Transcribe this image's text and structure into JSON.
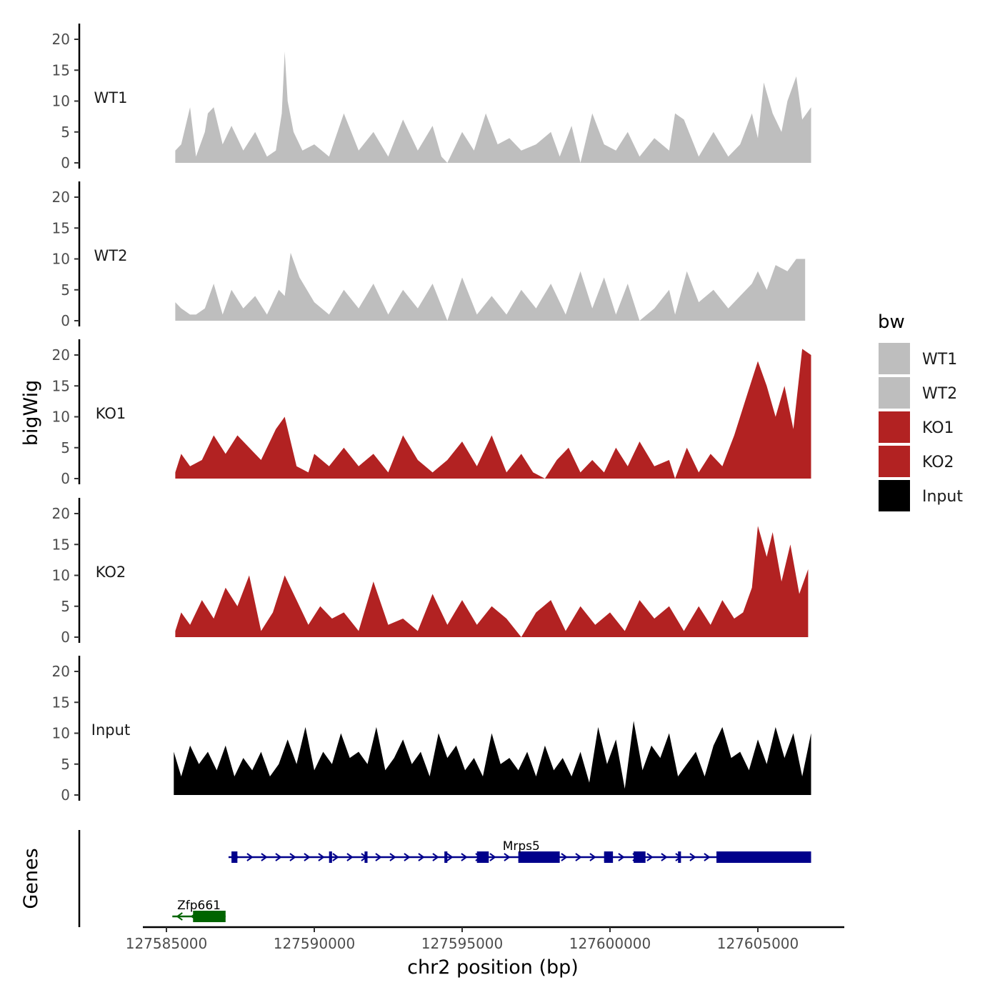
{
  "chart_data": {
    "type": "area",
    "xlabel": "chr2 position (bp)",
    "ylabel": "bigWig",
    "genes_label": "Genes",
    "xlim": [
      127584000,
      127606900
    ],
    "x_ticks": [
      127585000,
      127590000,
      127595000,
      127600000,
      127605000
    ],
    "x_tick_labels": [
      "127585000",
      "127590000",
      "127595000",
      "127600000",
      "127605000"
    ],
    "ylim": [
      0,
      22
    ],
    "y_ticks": [
      0,
      5,
      10,
      15,
      20
    ],
    "y_tick_labels": [
      "0",
      "5",
      "10",
      "15",
      "20"
    ],
    "legend": {
      "title": "bw",
      "entries": [
        {
          "label": "WT1",
          "color": "#bebebe"
        },
        {
          "label": "WT2",
          "color": "#bebebe"
        },
        {
          "label": "KO1",
          "color": "#b22222"
        },
        {
          "label": "KO2",
          "color": "#b22222"
        },
        {
          "label": "Input",
          "color": "#000000"
        }
      ]
    },
    "tracks": [
      {
        "name": "WT1",
        "color": "#bebebe",
        "x": [
          127585300,
          127585500,
          127585800,
          127586000,
          127586300,
          127586400,
          127586600,
          127586900,
          127587200,
          127587600,
          127588000,
          127588400,
          127588700,
          127588900,
          127589000,
          127589100,
          127589300,
          127589600,
          127590000,
          127590500,
          127591000,
          127591500,
          127592000,
          127592500,
          127593000,
          127593500,
          127594000,
          127594300,
          127594500,
          127595000,
          127595400,
          127595800,
          127596200,
          127596600,
          127597000,
          127597500,
          127598000,
          127598300,
          127598700,
          127599000,
          127599400,
          127599800,
          127600200,
          127600600,
          127601000,
          127601500,
          127602000,
          127602200,
          127602500,
          127603000,
          127603500,
          127604000,
          127604400,
          127604800,
          127605000,
          127605200,
          127605500,
          127605800,
          127606000,
          127606300,
          127606500,
          127606800
        ],
        "y": [
          2,
          3,
          9,
          1,
          5,
          8,
          9,
          3,
          6,
          2,
          5,
          1,
          2,
          8,
          18,
          10,
          5,
          2,
          3,
          1,
          8,
          2,
          5,
          1,
          7,
          2,
          6,
          1,
          0,
          5,
          2,
          8,
          3,
          4,
          2,
          3,
          5,
          1,
          6,
          0,
          8,
          3,
          2,
          5,
          1,
          4,
          2,
          8,
          7,
          1,
          5,
          1,
          3,
          8,
          4,
          13,
          8,
          5,
          10,
          14,
          7,
          9
        ]
      },
      {
        "name": "WT2",
        "color": "#bebebe",
        "x": [
          127585300,
          127585500,
          127585800,
          127586000,
          127586300,
          127586600,
          127586900,
          127587200,
          127587600,
          127588000,
          127588400,
          127588800,
          127589000,
          127589200,
          127589500,
          127590000,
          127590500,
          127591000,
          127591500,
          127592000,
          127592500,
          127593000,
          127593500,
          127594000,
          127594500,
          127595000,
          127595500,
          127596000,
          127596500,
          127597000,
          127597500,
          127598000,
          127598500,
          127599000,
          127599400,
          127599800,
          127600200,
          127600600,
          127601000,
          127601500,
          127602000,
          127602200,
          127602600,
          127603000,
          127603500,
          127604000,
          127604400,
          127604800,
          127605000,
          127605300,
          127605600,
          127606000,
          127606300,
          127606600
        ],
        "y": [
          3,
          2,
          1,
          1,
          2,
          6,
          1,
          5,
          2,
          4,
          1,
          5,
          4,
          11,
          7,
          3,
          1,
          5,
          2,
          6,
          1,
          5,
          2,
          6,
          0,
          7,
          1,
          4,
          1,
          5,
          2,
          6,
          1,
          8,
          2,
          7,
          1,
          6,
          0,
          2,
          5,
          1,
          8,
          3,
          5,
          2,
          4,
          6,
          8,
          5,
          9,
          8,
          10,
          10
        ]
      },
      {
        "name": "KO1",
        "color": "#b22222",
        "x": [
          127585300,
          127585500,
          127585800,
          127586200,
          127586600,
          127587000,
          127587400,
          127587800,
          127588200,
          127588700,
          127589000,
          127589400,
          127589800,
          127590000,
          127590500,
          127591000,
          127591500,
          127592000,
          127592500,
          127593000,
          127593500,
          127594000,
          127594500,
          127595000,
          127595500,
          127596000,
          127596500,
          127597000,
          127597400,
          127597800,
          127598200,
          127598600,
          127599000,
          127599400,
          127599800,
          127600200,
          127600600,
          127601000,
          127601500,
          127602000,
          127602200,
          127602600,
          127603000,
          127603400,
          127603800,
          127604200,
          127604600,
          127605000,
          127605300,
          127605600,
          127605900,
          127606200,
          127606500,
          127606800
        ],
        "y": [
          1,
          4,
          2,
          3,
          7,
          4,
          7,
          5,
          3,
          8,
          10,
          2,
          1,
          4,
          2,
          5,
          2,
          4,
          1,
          7,
          3,
          1,
          3,
          6,
          2,
          7,
          1,
          4,
          1,
          0,
          3,
          5,
          1,
          3,
          1,
          5,
          2,
          6,
          2,
          3,
          0,
          5,
          1,
          4,
          2,
          7,
          13,
          19,
          15,
          10,
          15,
          8,
          21,
          20
        ]
      },
      {
        "name": "KO2",
        "color": "#b22222",
        "x": [
          127585300,
          127585500,
          127585800,
          127586200,
          127586600,
          127587000,
          127587400,
          127587800,
          127588200,
          127588600,
          127589000,
          127589400,
          127589800,
          127590200,
          127590600,
          127591000,
          127591500,
          127592000,
          127592500,
          127593000,
          127593500,
          127594000,
          127594500,
          127595000,
          127595500,
          127596000,
          127596500,
          127597000,
          127597500,
          127598000,
          127598500,
          127599000,
          127599500,
          127600000,
          127600500,
          127601000,
          127601500,
          127602000,
          127602500,
          127603000,
          127603400,
          127603800,
          127604200,
          127604500,
          127604800,
          127605000,
          127605300,
          127605500,
          127605800,
          127606100,
          127606400,
          127606700
        ],
        "y": [
          1,
          4,
          2,
          6,
          3,
          8,
          5,
          10,
          1,
          4,
          10,
          6,
          2,
          5,
          3,
          4,
          1,
          9,
          2,
          3,
          1,
          7,
          2,
          6,
          2,
          5,
          3,
          0,
          4,
          6,
          1,
          5,
          2,
          4,
          1,
          6,
          3,
          5,
          1,
          5,
          2,
          6,
          3,
          4,
          8,
          18,
          13,
          17,
          9,
          15,
          7,
          11
        ]
      },
      {
        "name": "Input",
        "color": "#000000",
        "x": [
          127585250,
          127585500,
          127585800,
          127586100,
          127586400,
          127586700,
          127587000,
          127587300,
          127587600,
          127587900,
          127588200,
          127588500,
          127588800,
          127589100,
          127589400,
          127589700,
          127590000,
          127590300,
          127590600,
          127590900,
          127591200,
          127591500,
          127591800,
          127592100,
          127592400,
          127592700,
          127593000,
          127593300,
          127593600,
          127593900,
          127594200,
          127594500,
          127594800,
          127595100,
          127595400,
          127595700,
          127596000,
          127596300,
          127596600,
          127596900,
          127597200,
          127597500,
          127597800,
          127598100,
          127598400,
          127598700,
          127599000,
          127599300,
          127599600,
          127599900,
          127600200,
          127600500,
          127600800,
          127601100,
          127601400,
          127601700,
          127602000,
          127602300,
          127602600,
          127602900,
          127603200,
          127603500,
          127603800,
          127604100,
          127604400,
          127604700,
          127605000,
          127605300,
          127605600,
          127605900,
          127606200,
          127606500,
          127606800
        ],
        "y": [
          7,
          3,
          8,
          5,
          7,
          4,
          8,
          3,
          6,
          4,
          7,
          3,
          5,
          9,
          5,
          11,
          4,
          7,
          5,
          10,
          6,
          7,
          5,
          11,
          4,
          6,
          9,
          5,
          7,
          3,
          10,
          6,
          8,
          4,
          6,
          3,
          10,
          5,
          6,
          4,
          7,
          3,
          8,
          4,
          6,
          3,
          7,
          2,
          11,
          5,
          9,
          1,
          12,
          4,
          8,
          6,
          10,
          3,
          5,
          7,
          3,
          8,
          11,
          6,
          7,
          4,
          9,
          5,
          11,
          6,
          10,
          3,
          10
        ]
      }
    ],
    "genes": [
      {
        "name": "Mrps5",
        "strand": "+",
        "color": "#00008b",
        "start": 127587100,
        "end": 127606800,
        "exons": [
          [
            127587200,
            127587400
          ],
          [
            127590500,
            127590600
          ],
          [
            127591700,
            127591800
          ],
          [
            127594400,
            127594500
          ],
          [
            127595500,
            127595900
          ],
          [
            127596900,
            127598300
          ],
          [
            127599800,
            127600100
          ],
          [
            127600800,
            127601200
          ],
          [
            127602300,
            127602400
          ],
          [
            127603600,
            127606800
          ]
        ]
      },
      {
        "name": "Zfp661",
        "strand": "-",
        "color": "#006400",
        "start": 127585200,
        "end": 127587000,
        "exons": [
          [
            127585900,
            127587000
          ]
        ]
      }
    ]
  }
}
